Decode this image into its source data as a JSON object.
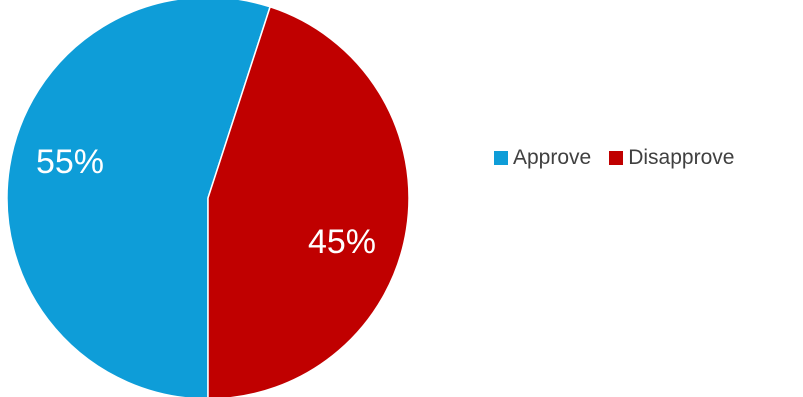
{
  "chart_data": {
    "type": "pie",
    "title": "",
    "categories": [
      "Approve",
      "Disapprove"
    ],
    "values": [
      55,
      45
    ],
    "labels": [
      "55%",
      "45%"
    ],
    "colors": [
      "#0E9DD8",
      "#C00000"
    ],
    "legend_position": "right"
  }
}
